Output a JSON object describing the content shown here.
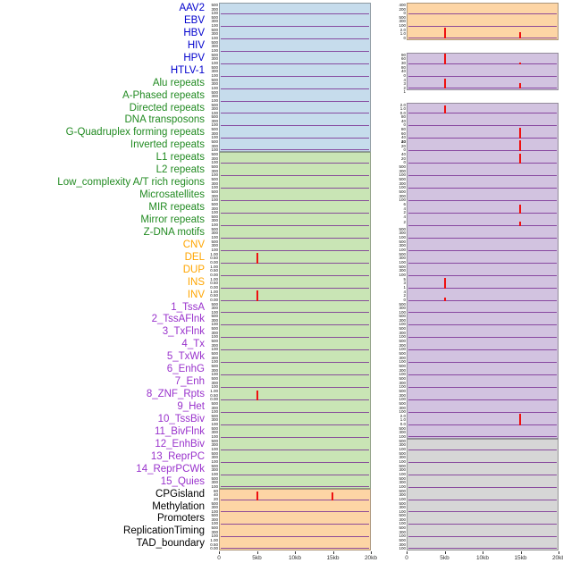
{
  "palette": {
    "label": {
      "virus": "#0000cd",
      "repeat": "#228b22",
      "sv": "#ffa500",
      "chromatin": "#9932cc",
      "regulatory": "#000000"
    },
    "panel": {
      "blue": "#c6dcec",
      "green": "#c9e5b5",
      "orange": "#fdd5a5",
      "purple": "#d2c3e0",
      "gray": "#d6d6d6",
      "white": "#ffffff"
    },
    "spike": "#ee1111",
    "baseline": "#7b3294",
    "panel_edge": "rgba(70,70,70,0.45)",
    "axis_text": "#333333"
  },
  "chart_data": {
    "type": "area",
    "layout": "small-multiples-two-columns",
    "x_axis": {
      "ticks": [
        "0",
        "5kb",
        "10kb",
        "15kb",
        "20kb"
      ],
      "range_kb": [
        0,
        20
      ]
    },
    "rows": [
      {
        "label": "AAV2",
        "group": "virus",
        "left": {
          "bg": "blue",
          "yticks": [
            "500",
            "300",
            "100"
          ]
        },
        "right": {
          "bg": "orange",
          "yticks": [
            "400",
            "200",
            "0"
          ]
        }
      },
      {
        "label": "EBV",
        "group": "virus",
        "left": {
          "bg": "blue",
          "yticks": [
            "500",
            "300",
            "100"
          ]
        },
        "right": {
          "bg": "orange",
          "yticks": [
            "500",
            "300",
            "100"
          ]
        }
      },
      {
        "label": "HBV",
        "group": "virus",
        "left": {
          "bg": "blue",
          "yticks": [
            "500",
            "300",
            "100"
          ]
        },
        "right": {
          "bg": "orange",
          "yticks": [
            "2.0",
            "1.0",
            "0"
          ],
          "spikes": [
            {
              "x_kb": 5,
              "h": 0.95
            },
            {
              "x_kb": 15,
              "h": 0.5
            }
          ]
        }
      },
      {
        "label": "HIV",
        "group": "virus",
        "left": {
          "bg": "blue",
          "yticks": [
            "500",
            "300",
            "100"
          ]
        },
        "right": {
          "bg": "white",
          "yticks": [],
          "baseline": false
        }
      },
      {
        "label": "HPV",
        "group": "virus",
        "left": {
          "bg": "blue",
          "yticks": [
            "500",
            "300",
            "100"
          ]
        },
        "right": {
          "bg": "purple",
          "yticks": [
            "90",
            "60",
            "30"
          ],
          "spikes": [
            {
              "x_kb": 5,
              "h": 0.9
            },
            {
              "x_kb": 15,
              "h": 0.12
            }
          ]
        }
      },
      {
        "label": "HTLV-1",
        "group": "virus",
        "left": {
          "bg": "blue",
          "yticks": [
            "500",
            "300",
            "100"
          ]
        },
        "right": {
          "bg": "purple",
          "yticks": [
            "80",
            "40",
            "0"
          ]
        }
      },
      {
        "label": "Alu repeats",
        "group": "repeat",
        "left": {
          "bg": "blue",
          "yticks": [
            "500",
            "300",
            "100"
          ]
        },
        "right": {
          "bg": "purple",
          "yticks": [
            "4",
            "3",
            "2",
            "1"
          ],
          "spikes": [
            {
              "x_kb": 5,
              "h": 0.8
            },
            {
              "x_kb": 15,
              "h": 0.45
            }
          ]
        }
      },
      {
        "label": "A-Phased repeats",
        "group": "repeat",
        "left": {
          "bg": "blue",
          "yticks": [
            "500",
            "300",
            "100"
          ]
        },
        "right": {
          "bg": "white",
          "yticks": [],
          "baseline": false
        }
      },
      {
        "label": "Directed repeats",
        "group": "repeat",
        "left": {
          "bg": "blue",
          "yticks": [
            "500",
            "300",
            "100"
          ]
        },
        "right": {
          "bg": "purple",
          "yticks": [
            "2.0",
            "1.0",
            "0.0"
          ],
          "spikes": [
            {
              "x_kb": 5,
              "h": 0.75
            }
          ]
        }
      },
      {
        "label": "DNA transposons",
        "group": "repeat",
        "left": {
          "bg": "blue",
          "yticks": [
            "500",
            "300",
            "100"
          ]
        },
        "right": {
          "bg": "purple",
          "yticks": [
            "80",
            "40",
            "0"
          ]
        }
      },
      {
        "label": "G-Quadruplex forming repeats",
        "group": "repeat",
        "left": {
          "bg": "blue",
          "yticks": [
            "500",
            "300",
            "100"
          ]
        },
        "right": {
          "bg": "purple",
          "yticks": [
            "80",
            "60",
            "40",
            "20"
          ],
          "spikes": [
            {
              "x_kb": 15,
              "h": 0.9
            }
          ]
        }
      },
      {
        "label": "Inverted repeats",
        "group": "repeat",
        "left": {
          "bg": "blue",
          "yticks": [
            "500",
            "300",
            "100"
          ]
        },
        "right": {
          "bg": "purple",
          "yticks": [
            "40",
            "20",
            "0"
          ],
          "spikes": [
            {
              "x_kb": 15,
              "h": 0.85
            }
          ]
        }
      },
      {
        "label": "L1 repeats",
        "group": "repeat",
        "left": {
          "bg": "green",
          "yticks": [
            "500",
            "300",
            "100"
          ]
        },
        "right": {
          "bg": "purple",
          "yticks": [
            "40",
            "20",
            "0"
          ],
          "spikes": [
            {
              "x_kb": 15,
              "h": 0.8
            }
          ]
        }
      },
      {
        "label": "L2 repeats",
        "group": "repeat",
        "left": {
          "bg": "green",
          "yticks": [
            "500",
            "300",
            "100"
          ]
        },
        "right": {
          "bg": "purple",
          "yticks": [
            "500",
            "300",
            "100"
          ]
        }
      },
      {
        "label": "Low_complexity A/T rich regions",
        "group": "repeat",
        "left": {
          "bg": "green",
          "yticks": [
            "500",
            "300",
            "100"
          ]
        },
        "right": {
          "bg": "purple",
          "yticks": [
            "500",
            "300",
            "100"
          ]
        }
      },
      {
        "label": "Microsatellites",
        "group": "repeat",
        "left": {
          "bg": "green",
          "yticks": [
            "500",
            "300",
            "100"
          ]
        },
        "right": {
          "bg": "purple",
          "yticks": [
            "500",
            "300",
            "100"
          ]
        }
      },
      {
        "label": "MIR repeats",
        "group": "repeat",
        "left": {
          "bg": "green",
          "yticks": [
            "500",
            "300",
            "100"
          ]
        },
        "right": {
          "bg": "purple",
          "yticks": [
            "6",
            "4",
            "2"
          ],
          "spikes": [
            {
              "x_kb": 15,
              "h": 0.7
            }
          ]
        }
      },
      {
        "label": "Mirror repeats",
        "group": "repeat",
        "left": {
          "bg": "green",
          "yticks": [
            "500",
            "300",
            "100"
          ]
        },
        "right": {
          "bg": "purple",
          "yticks": [
            "4",
            "2"
          ],
          "spikes": [
            {
              "x_kb": 15,
              "h": 0.35
            }
          ]
        }
      },
      {
        "label": "Z-DNA motifs",
        "group": "repeat",
        "left": {
          "bg": "green",
          "yticks": [
            "500",
            "300",
            "100"
          ]
        },
        "right": {
          "bg": "purple",
          "yticks": [
            "500",
            "300",
            "100"
          ]
        }
      },
      {
        "label": "CNV",
        "group": "sv",
        "left": {
          "bg": "green",
          "yticks": [
            "500",
            "300",
            "100"
          ]
        },
        "right": {
          "bg": "purple",
          "yticks": [
            "500",
            "300",
            "100"
          ]
        }
      },
      {
        "label": "DEL",
        "group": "sv",
        "left": {
          "bg": "green",
          "yticks": [
            "1.00",
            "0.50",
            "0.00"
          ],
          "spikes": [
            {
              "x_kb": 5,
              "h": 0.85
            }
          ]
        },
        "right": {
          "bg": "purple",
          "yticks": [
            "500",
            "300",
            "100"
          ]
        }
      },
      {
        "label": "DUP",
        "group": "sv",
        "left": {
          "bg": "green",
          "yticks": [
            "1.00",
            "0.50",
            "0.00"
          ]
        },
        "right": {
          "bg": "purple",
          "yticks": [
            "500",
            "300",
            "100"
          ]
        }
      },
      {
        "label": "INS",
        "group": "sv",
        "left": {
          "bg": "green",
          "yticks": [
            "1.00",
            "0.50",
            "0.00"
          ]
        },
        "right": {
          "bg": "purple",
          "yticks": [
            "5",
            "3",
            "1"
          ],
          "spikes": [
            {
              "x_kb": 5,
              "h": 0.8
            }
          ]
        }
      },
      {
        "label": "INV",
        "group": "sv",
        "left": {
          "bg": "green",
          "yticks": [
            "1.00",
            "0.50",
            "0.00"
          ],
          "spikes": [
            {
              "x_kb": 5,
              "h": 0.8
            }
          ]
        },
        "right": {
          "bg": "purple",
          "yticks": [
            "4",
            "2",
            "0"
          ],
          "spikes": [
            {
              "x_kb": 5,
              "h": 0.25
            }
          ]
        }
      },
      {
        "label": "1_TssA",
        "group": "chromatin",
        "left": {
          "bg": "green",
          "yticks": [
            "500",
            "300",
            "100"
          ]
        },
        "right": {
          "bg": "purple",
          "yticks": [
            "500",
            "300",
            "100"
          ]
        }
      },
      {
        "label": "2_TssAFlnk",
        "group": "chromatin",
        "left": {
          "bg": "green",
          "yticks": [
            "500",
            "300",
            "100"
          ]
        },
        "right": {
          "bg": "purple",
          "yticks": [
            "500",
            "300",
            "100"
          ]
        }
      },
      {
        "label": "3_TxFlnk",
        "group": "chromatin",
        "left": {
          "bg": "green",
          "yticks": [
            "500",
            "300",
            "100"
          ]
        },
        "right": {
          "bg": "purple",
          "yticks": [
            "500",
            "300",
            "100"
          ]
        }
      },
      {
        "label": "4_Tx",
        "group": "chromatin",
        "left": {
          "bg": "green",
          "yticks": [
            "500",
            "300",
            "100"
          ]
        },
        "right": {
          "bg": "purple",
          "yticks": [
            "500",
            "300",
            "100"
          ]
        }
      },
      {
        "label": "5_TxWk",
        "group": "chromatin",
        "left": {
          "bg": "green",
          "yticks": [
            "500",
            "300",
            "100"
          ]
        },
        "right": {
          "bg": "purple",
          "yticks": [
            "500",
            "300",
            "100"
          ]
        }
      },
      {
        "label": "6_EnhG",
        "group": "chromatin",
        "left": {
          "bg": "green",
          "yticks": [
            "500",
            "300",
            "100"
          ]
        },
        "right": {
          "bg": "purple",
          "yticks": [
            "500",
            "300",
            "100"
          ]
        }
      },
      {
        "label": "7_Enh",
        "group": "chromatin",
        "left": {
          "bg": "green",
          "yticks": [
            "500",
            "300",
            "100"
          ]
        },
        "right": {
          "bg": "purple",
          "yticks": [
            "500",
            "300",
            "100"
          ]
        }
      },
      {
        "label": "8_ZNF_Rpts",
        "group": "chromatin",
        "left": {
          "bg": "green",
          "yticks": [
            "1.00",
            "0.50",
            "0.00"
          ],
          "spikes": [
            {
              "x_kb": 5,
              "h": 0.8
            }
          ]
        },
        "right": {
          "bg": "purple",
          "yticks": [
            "500",
            "300",
            "100"
          ]
        }
      },
      {
        "label": "9_Het",
        "group": "chromatin",
        "left": {
          "bg": "green",
          "yticks": [
            "500",
            "300",
            "100"
          ]
        },
        "right": {
          "bg": "purple",
          "yticks": [
            "500",
            "300",
            "100"
          ]
        }
      },
      {
        "label": "10_TssBiv",
        "group": "chromatin",
        "left": {
          "bg": "green",
          "yticks": [
            "500",
            "300",
            "100"
          ]
        },
        "right": {
          "bg": "purple",
          "yticks": [
            "2.0",
            "1.0",
            "0.0"
          ],
          "spikes": [
            {
              "x_kb": 15,
              "h": 0.95
            }
          ]
        }
      },
      {
        "label": "11_BivFlnk",
        "group": "chromatin",
        "left": {
          "bg": "green",
          "yticks": [
            "500",
            "300",
            "100"
          ]
        },
        "right": {
          "bg": "purple",
          "yticks": [
            "500",
            "300",
            "100"
          ]
        }
      },
      {
        "label": "12_EnhBiv",
        "group": "chromatin",
        "left": {
          "bg": "green",
          "yticks": [
            "500",
            "300",
            "100"
          ]
        },
        "right": {
          "bg": "gray",
          "yticks": [
            "500",
            "300",
            "100"
          ]
        }
      },
      {
        "label": "13_ReprPC",
        "group": "chromatin",
        "left": {
          "bg": "green",
          "yticks": [
            "500",
            "300",
            "100"
          ]
        },
        "right": {
          "bg": "gray",
          "yticks": [
            "500",
            "300",
            "100"
          ]
        }
      },
      {
        "label": "14_ReprPCWk",
        "group": "chromatin",
        "left": {
          "bg": "green",
          "yticks": [
            "500",
            "300",
            "100"
          ]
        },
        "right": {
          "bg": "gray",
          "yticks": [
            "500",
            "300",
            "100"
          ]
        }
      },
      {
        "label": "15_Quies",
        "group": "chromatin",
        "left": {
          "bg": "green",
          "yticks": [
            "500",
            "300",
            "100"
          ]
        },
        "right": {
          "bg": "gray",
          "yticks": [
            "500",
            "300",
            "100"
          ]
        }
      },
      {
        "label": "CPGisland",
        "group": "regulatory",
        "left": {
          "bg": "orange",
          "yticks": [
            "60",
            "40",
            "20"
          ],
          "spikes": [
            {
              "x_kb": 5,
              "h": 0.7
            },
            {
              "x_kb": 15,
              "h": 0.65
            }
          ]
        },
        "right": {
          "bg": "gray",
          "yticks": [
            "500",
            "300",
            "100"
          ]
        }
      },
      {
        "label": "Methylation",
        "group": "regulatory",
        "left": {
          "bg": "orange",
          "yticks": [
            "500",
            "300",
            "100"
          ]
        },
        "right": {
          "bg": "gray",
          "yticks": [
            "500",
            "300",
            "100"
          ]
        }
      },
      {
        "label": "Promoters",
        "group": "regulatory",
        "left": {
          "bg": "orange",
          "yticks": [
            "500",
            "300",
            "100"
          ]
        },
        "right": {
          "bg": "gray",
          "yticks": [
            "500",
            "300",
            "100"
          ]
        }
      },
      {
        "label": "ReplicationTiming",
        "group": "regulatory",
        "left": {
          "bg": "orange",
          "yticks": [
            "500",
            "300",
            "100"
          ]
        },
        "right": {
          "bg": "gray",
          "yticks": [
            "500",
            "300",
            "100"
          ]
        }
      },
      {
        "label": "TAD_boundary",
        "group": "regulatory",
        "left": {
          "bg": "orange",
          "yticks": [
            "1.00",
            "0.50",
            "0.00"
          ]
        },
        "right": {
          "bg": "gray",
          "yticks": [
            "500",
            "300",
            "100"
          ]
        }
      }
    ]
  }
}
